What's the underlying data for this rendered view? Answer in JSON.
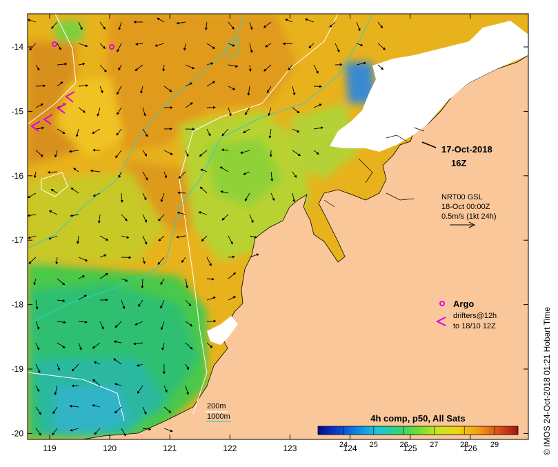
{
  "map": {
    "x_ticks": [
      "119",
      "120",
      "121",
      "122",
      "123",
      "124",
      "125",
      "126"
    ],
    "y_ticks": [
      "-14",
      "-15",
      "-16",
      "-17",
      "-18",
      "-19",
      "-20"
    ],
    "date_label": "17-Oct-2018",
    "time_label": "16Z",
    "vector_info": {
      "line1": "NRT00 GSL",
      "line2": "18-Oct 00:00Z",
      "line3": "0.5m/s (1kt 24h)"
    },
    "legend": {
      "argo_label": "Argo",
      "drifters_line1": "drifters@12h",
      "drifters_line2": "to 18/10 12Z",
      "contour_200": "200m",
      "contour_1000": "1000m"
    },
    "colorbar": {
      "title": "4h comp, p50, All Sats",
      "labels": [
        "24",
        "25",
        "26",
        "27",
        "28",
        "29"
      ]
    },
    "credit": "© IMOS 24-Oct-2018 01:21 Hobart Time",
    "colors": {
      "land": "#f9c79a",
      "argo": "#e100e1",
      "contour_1000": "#33cccc"
    }
  }
}
